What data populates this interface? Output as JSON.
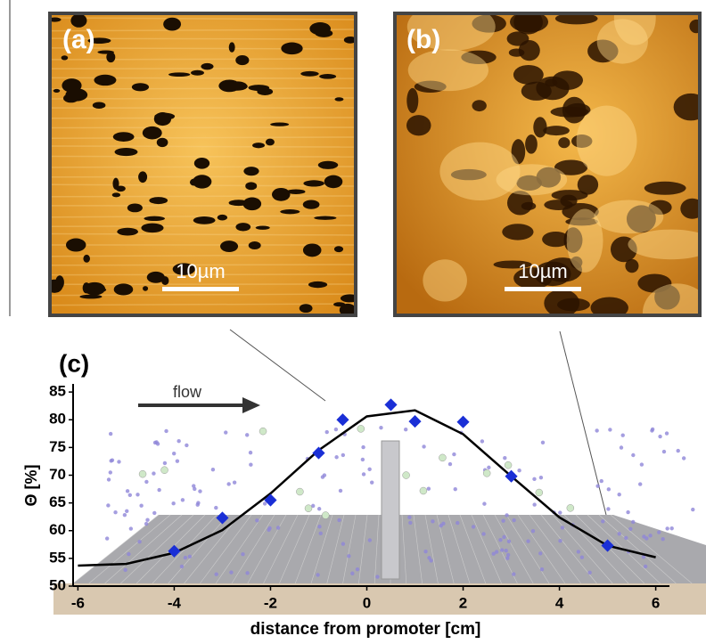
{
  "panel_a": {
    "label": "(a)",
    "scale": "10µm"
  },
  "panel_b": {
    "label": "(b)",
    "scale": "10µm"
  },
  "chart_data": {
    "type": "scatter",
    "panel_label": "(c)",
    "annotation": "flow",
    "x_label": "distance from promoter [cm]",
    "y_label": "Θ [%]",
    "xlim": [
      -6.1,
      6.1
    ],
    "ylim": [
      50,
      85.5
    ],
    "xticks": [
      -6,
      -4,
      -2,
      0,
      2,
      4,
      6
    ],
    "yticks": [
      50,
      55,
      60,
      65,
      70,
      75,
      80,
      85
    ],
    "points": {
      "color": "#1a2fd6",
      "x": [
        -4,
        -3,
        -2,
        -1,
        -0.5,
        0.5,
        1,
        2,
        3,
        5
      ],
      "values": [
        56.3,
        62.3,
        65.5,
        74,
        80,
        82.7,
        79.7,
        79.6,
        69.8,
        57.3
      ]
    },
    "curve": {
      "color": "#000000",
      "x": [
        -6,
        -5,
        -4,
        -3,
        -2,
        -1,
        0,
        1,
        2,
        3,
        4,
        5,
        6
      ],
      "values": [
        53.7,
        54.0,
        56.0,
        60.1,
        66.7,
        74.5,
        80.6,
        81.7,
        77.4,
        69.8,
        62.4,
        57.3,
        55.2
      ]
    }
  }
}
